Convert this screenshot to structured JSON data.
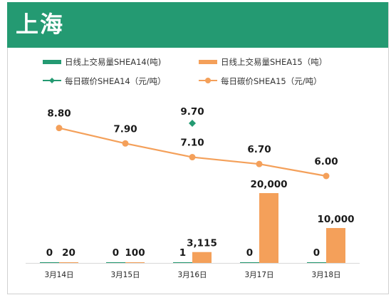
{
  "header": {
    "title": "上海"
  },
  "chart_data": {
    "type": "bar",
    "categories": [
      "3月14日",
      "3月15日",
      "3月16日",
      "3月17日",
      "3月18日"
    ],
    "series": [
      {
        "name": "日线上交易量SHEA14(吨)",
        "kind": "bar",
        "color": "#249a72",
        "values": [
          0,
          0,
          1,
          0,
          0
        ],
        "labels": [
          "0",
          "0",
          "1",
          "0",
          "0"
        ]
      },
      {
        "name": "日线上交易量SHEA15（吨）",
        "kind": "bar",
        "color": "#f4a05a",
        "values": [
          20,
          100,
          3115,
          20000,
          10000
        ],
        "labels": [
          "20",
          "100",
          "3,115",
          "20,000",
          "10,000"
        ]
      },
      {
        "name": "每日碳价SHEA14（元/吨）",
        "kind": "line",
        "color": "#249a72",
        "values": [
          null,
          null,
          9.7,
          null,
          null
        ],
        "labels": [
          "",
          "",
          "9.70",
          "",
          ""
        ]
      },
      {
        "name": "每日碳价SHEA15（元/吨）",
        "kind": "line",
        "color": "#f4a05a",
        "values": [
          8.8,
          7.9,
          7.1,
          6.7,
          6.0
        ],
        "labels": [
          "8.80",
          "7.90",
          "7.10",
          "6.70",
          "6.00"
        ]
      }
    ],
    "bar_axis": {
      "ylim": [
        0,
        20000
      ]
    },
    "line_axis": {
      "ylim": [
        6.0,
        9.7
      ]
    },
    "legend_position": "top",
    "grid": false
  }
}
